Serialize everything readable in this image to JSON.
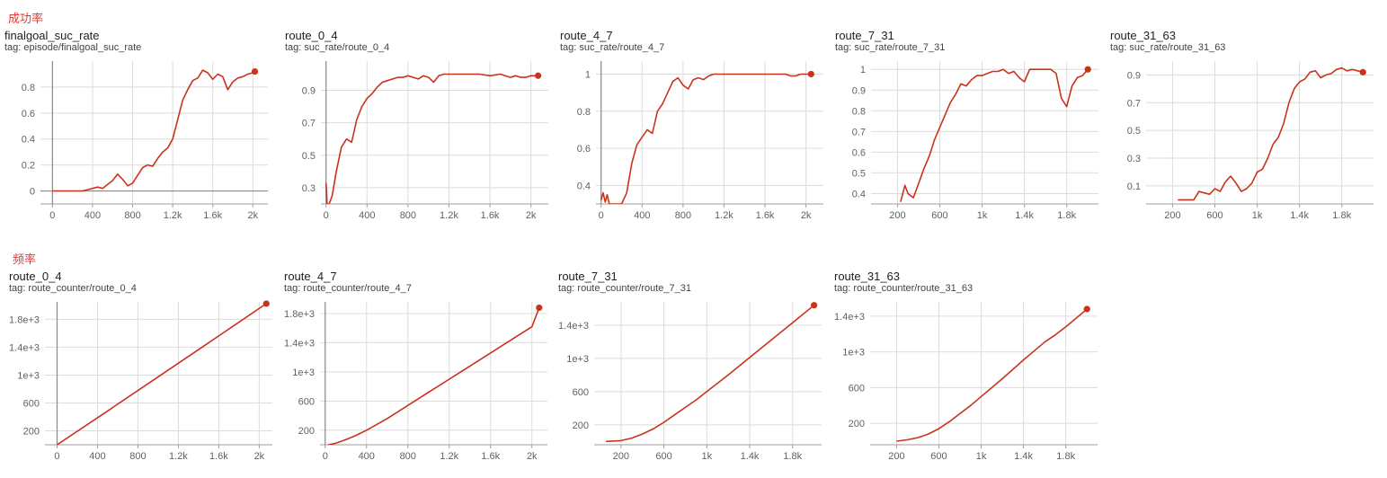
{
  "sections": [
    {
      "label": "成功率"
    },
    {
      "label": "频率"
    }
  ],
  "chart_data": [
    {
      "type": "line",
      "title": "finalgoal_suc_rate",
      "tag": "tag: episode/finalgoal_suc_rate",
      "series_color": "#c9331b",
      "xlim": [
        -120,
        2150
      ],
      "ylim": [
        -0.1,
        1.0
      ],
      "xticks": [
        {
          "v": 0,
          "label": "0"
        },
        {
          "v": 400,
          "label": "400"
        },
        {
          "v": 800,
          "label": "800"
        },
        {
          "v": 1200,
          "label": "1.2k"
        },
        {
          "v": 1600,
          "label": "1.6k"
        },
        {
          "v": 2000,
          "label": "2k"
        }
      ],
      "yticks": [
        {
          "v": 0,
          "label": "0"
        },
        {
          "v": 0.2,
          "label": "0.2"
        },
        {
          "v": 0.4,
          "label": "0.4"
        },
        {
          "v": 0.6,
          "label": "0.6"
        },
        {
          "v": 0.8,
          "label": "0.8"
        }
      ],
      "zero_axis": true,
      "x": [
        0,
        150,
        300,
        350,
        400,
        450,
        500,
        550,
        600,
        650,
        700,
        750,
        800,
        850,
        900,
        950,
        1000,
        1050,
        1100,
        1150,
        1200,
        1250,
        1300,
        1350,
        1400,
        1450,
        1500,
        1550,
        1600,
        1650,
        1700,
        1750,
        1800,
        1850,
        1900,
        1950,
        2000,
        2020
      ],
      "y": [
        0,
        0,
        0,
        0.01,
        0.02,
        0.03,
        0.02,
        0.05,
        0.08,
        0.13,
        0.09,
        0.04,
        0.06,
        0.12,
        0.18,
        0.2,
        0.19,
        0.25,
        0.3,
        0.33,
        0.4,
        0.55,
        0.7,
        0.78,
        0.85,
        0.87,
        0.93,
        0.91,
        0.86,
        0.9,
        0.88,
        0.78,
        0.84,
        0.87,
        0.88,
        0.9,
        0.91,
        0.92
      ]
    },
    {
      "type": "line",
      "title": "route_0_4",
      "tag": "tag: suc_rate/route_0_4",
      "series_color": "#c9331b",
      "xlim": [
        -50,
        2170
      ],
      "ylim": [
        0.2,
        1.08
      ],
      "xticks": [
        {
          "v": 0,
          "label": "0"
        },
        {
          "v": 400,
          "label": "400"
        },
        {
          "v": 800,
          "label": "800"
        },
        {
          "v": 1200,
          "label": "1.2k"
        },
        {
          "v": 1600,
          "label": "1.6k"
        },
        {
          "v": 2000,
          "label": "2k"
        }
      ],
      "yticks": [
        {
          "v": 0.3,
          "label": "0.3"
        },
        {
          "v": 0.5,
          "label": "0.5"
        },
        {
          "v": 0.7,
          "label": "0.7"
        },
        {
          "v": 0.9,
          "label": "0.9"
        }
      ],
      "zero_axis": true,
      "x": [
        0,
        5,
        10,
        30,
        60,
        100,
        150,
        200,
        250,
        300,
        350,
        400,
        450,
        500,
        550,
        600,
        650,
        700,
        750,
        800,
        850,
        900,
        950,
        1000,
        1050,
        1100,
        1150,
        1200,
        1250,
        1300,
        1400,
        1500,
        1600,
        1700,
        1800,
        1850,
        1900,
        1950,
        2000,
        2070
      ],
      "y": [
        0.33,
        0.28,
        0.2,
        0.2,
        0.25,
        0.4,
        0.55,
        0.6,
        0.58,
        0.72,
        0.8,
        0.85,
        0.88,
        0.92,
        0.95,
        0.96,
        0.97,
        0.98,
        0.98,
        0.99,
        0.98,
        0.97,
        0.99,
        0.98,
        0.95,
        0.99,
        1.0,
        1.0,
        1.0,
        1.0,
        1.0,
        1.0,
        0.99,
        1.0,
        0.98,
        0.99,
        0.98,
        0.98,
        0.99,
        0.99
      ]
    },
    {
      "type": "line",
      "title": "route_4_7",
      "tag": "tag: suc_rate/route_4_7",
      "series_color": "#c9331b",
      "xlim": [
        -50,
        2170
      ],
      "ylim": [
        0.3,
        1.07
      ],
      "xticks": [
        {
          "v": 0,
          "label": "0"
        },
        {
          "v": 400,
          "label": "400"
        },
        {
          "v": 800,
          "label": "800"
        },
        {
          "v": 1200,
          "label": "1.2k"
        },
        {
          "v": 1600,
          "label": "1.6k"
        },
        {
          "v": 2000,
          "label": "2k"
        }
      ],
      "yticks": [
        {
          "v": 0.4,
          "label": "0.4"
        },
        {
          "v": 0.6,
          "label": "0.6"
        },
        {
          "v": 0.8,
          "label": "0.8"
        },
        {
          "v": 1,
          "label": "1"
        }
      ],
      "zero_axis": true,
      "x": [
        0,
        20,
        40,
        60,
        80,
        150,
        200,
        250,
        300,
        350,
        400,
        450,
        500,
        550,
        600,
        650,
        700,
        750,
        800,
        850,
        900,
        950,
        1000,
        1050,
        1100,
        1200,
        1300,
        1400,
        1500,
        1600,
        1700,
        1800,
        1850,
        1900,
        1950,
        2000,
        2050
      ],
      "y": [
        0.32,
        0.36,
        0.31,
        0.35,
        0.3,
        0.3,
        0.3,
        0.36,
        0.52,
        0.62,
        0.66,
        0.7,
        0.68,
        0.8,
        0.84,
        0.9,
        0.96,
        0.98,
        0.94,
        0.92,
        0.97,
        0.98,
        0.97,
        0.99,
        1.0,
        1.0,
        1.0,
        1.0,
        1.0,
        1.0,
        1.0,
        1.0,
        0.99,
        0.99,
        1.0,
        1.0,
        1.0
      ]
    },
    {
      "type": "line",
      "title": "route_7_31",
      "tag": "tag: suc_rate/route_7_31",
      "series_color": "#c9331b",
      "xlim": [
        -50,
        2100
      ],
      "ylim": [
        0.35,
        1.04
      ],
      "xticks": [
        {
          "v": 200,
          "label": "200"
        },
        {
          "v": 600,
          "label": "600"
        },
        {
          "v": 1000,
          "label": "1k"
        },
        {
          "v": 1400,
          "label": "1.4k"
        },
        {
          "v": 1800,
          "label": "1.8k"
        }
      ],
      "yticks": [
        {
          "v": 0.4,
          "label": "0.4"
        },
        {
          "v": 0.5,
          "label": "0.5"
        },
        {
          "v": 0.6,
          "label": "0.6"
        },
        {
          "v": 0.7,
          "label": "0.7"
        },
        {
          "v": 0.8,
          "label": "0.8"
        },
        {
          "v": 0.9,
          "label": "0.9"
        },
        {
          "v": 1,
          "label": "1"
        }
      ],
      "zero_axis": false,
      "x": [
        230,
        270,
        300,
        350,
        400,
        450,
        500,
        550,
        600,
        650,
        700,
        750,
        800,
        850,
        900,
        950,
        1000,
        1050,
        1100,
        1150,
        1200,
        1250,
        1300,
        1350,
        1400,
        1450,
        1500,
        1550,
        1600,
        1650,
        1700,
        1750,
        1800,
        1850,
        1900,
        1950,
        2000
      ],
      "y": [
        0.36,
        0.44,
        0.4,
        0.38,
        0.45,
        0.52,
        0.58,
        0.66,
        0.72,
        0.78,
        0.84,
        0.88,
        0.93,
        0.92,
        0.95,
        0.97,
        0.97,
        0.98,
        0.99,
        0.99,
        1.0,
        0.98,
        0.99,
        0.96,
        0.94,
        1.0,
        1.0,
        1.0,
        1.0,
        1.0,
        0.98,
        0.86,
        0.82,
        0.92,
        0.96,
        0.97,
        1.0
      ]
    },
    {
      "type": "line",
      "title": "route_31_63",
      "tag": "tag: suc_rate/route_31_63",
      "series_color": "#c9331b",
      "xlim": [
        -50,
        2100
      ],
      "ylim": [
        -0.03,
        1.0
      ],
      "xticks": [
        {
          "v": 200,
          "label": "200"
        },
        {
          "v": 600,
          "label": "600"
        },
        {
          "v": 1000,
          "label": "1k"
        },
        {
          "v": 1400,
          "label": "1.4k"
        },
        {
          "v": 1800,
          "label": "1.8k"
        }
      ],
      "yticks": [
        {
          "v": 0.1,
          "label": "0.1"
        },
        {
          "v": 0.3,
          "label": "0.3"
        },
        {
          "v": 0.5,
          "label": "0.5"
        },
        {
          "v": 0.7,
          "label": "0.7"
        },
        {
          "v": 0.9,
          "label": "0.9"
        }
      ],
      "zero_axis": false,
      "x": [
        250,
        300,
        350,
        400,
        450,
        500,
        550,
        600,
        650,
        700,
        750,
        800,
        850,
        900,
        950,
        1000,
        1050,
        1100,
        1150,
        1200,
        1250,
        1300,
        1350,
        1400,
        1450,
        1500,
        1550,
        1600,
        1650,
        1700,
        1750,
        1800,
        1850,
        1900,
        1950,
        2000
      ],
      "y": [
        0.0,
        0.0,
        0.0,
        0.0,
        0.06,
        0.05,
        0.04,
        0.08,
        0.06,
        0.13,
        0.17,
        0.12,
        0.06,
        0.08,
        0.12,
        0.2,
        0.22,
        0.3,
        0.4,
        0.45,
        0.55,
        0.7,
        0.8,
        0.85,
        0.87,
        0.92,
        0.93,
        0.88,
        0.9,
        0.91,
        0.94,
        0.95,
        0.93,
        0.94,
        0.93,
        0.92
      ]
    },
    {
      "type": "line",
      "title": "route_0_4",
      "tag": "tag: route_counter/route_0_4",
      "series_color": "#c9331b",
      "xlim": [
        -120,
        2130
      ],
      "ylim": [
        0,
        2050
      ],
      "xticks": [
        {
          "v": 0,
          "label": "0"
        },
        {
          "v": 400,
          "label": "400"
        },
        {
          "v": 800,
          "label": "800"
        },
        {
          "v": 1200,
          "label": "1.2k"
        },
        {
          "v": 1600,
          "label": "1.6k"
        },
        {
          "v": 2000,
          "label": "2k"
        }
      ],
      "yticks": [
        {
          "v": 200,
          "label": "200"
        },
        {
          "v": 600,
          "label": "600"
        },
        {
          "v": 1000,
          "label": "1e+3"
        },
        {
          "v": 1400,
          "label": "1.4e+3"
        },
        {
          "v": 1800,
          "label": "1.8e+3"
        }
      ],
      "zero_axis": true,
      "x": [
        0,
        500,
        1000,
        1500,
        2070
      ],
      "y": [
        0,
        485,
        975,
        1465,
        2025
      ]
    },
    {
      "type": "line",
      "title": "route_4_7",
      "tag": "tag: route_counter/route_4_7",
      "series_color": "#c9331b",
      "xlim": [
        -50,
        2150
      ],
      "ylim": [
        0,
        1960
      ],
      "xticks": [
        {
          "v": 0,
          "label": "0"
        },
        {
          "v": 400,
          "label": "400"
        },
        {
          "v": 800,
          "label": "800"
        },
        {
          "v": 1200,
          "label": "1.2k"
        },
        {
          "v": 1600,
          "label": "1.6k"
        },
        {
          "v": 2000,
          "label": "2k"
        }
      ],
      "yticks": [
        {
          "v": 200,
          "label": "200"
        },
        {
          "v": 600,
          "label": "600"
        },
        {
          "v": 1000,
          "label": "1e+3"
        },
        {
          "v": 1400,
          "label": "1.4e+3"
        },
        {
          "v": 1800,
          "label": "1.8e+3"
        }
      ],
      "zero_axis": true,
      "x": [
        30,
        100,
        200,
        300,
        400,
        500,
        600,
        800,
        1000,
        1200,
        1400,
        1600,
        1800,
        2000,
        2070
      ],
      "y": [
        0,
        20,
        70,
        130,
        200,
        280,
        360,
        540,
        720,
        900,
        1080,
        1260,
        1440,
        1620,
        1880
      ]
    },
    {
      "type": "line",
      "title": "route_7_31",
      "tag": "tag: route_counter/route_7_31",
      "series_color": "#c9331b",
      "xlim": [
        -50,
        2070
      ],
      "ylim": [
        -40,
        1680
      ],
      "xticks": [
        {
          "v": 200,
          "label": "200"
        },
        {
          "v": 600,
          "label": "600"
        },
        {
          "v": 1000,
          "label": "1k"
        },
        {
          "v": 1400,
          "label": "1.4k"
        },
        {
          "v": 1800,
          "label": "1.8k"
        }
      ],
      "yticks": [
        {
          "v": 200,
          "label": "200"
        },
        {
          "v": 600,
          "label": "600"
        },
        {
          "v": 1000,
          "label": "1e+3"
        },
        {
          "v": 1400,
          "label": "1.4e+3"
        }
      ],
      "zero_axis": false,
      "x": [
        60,
        200,
        300,
        400,
        500,
        600,
        700,
        800,
        900,
        1000,
        1200,
        1400,
        1600,
        1800,
        2000
      ],
      "y": [
        0,
        10,
        40,
        90,
        150,
        230,
        320,
        410,
        500,
        600,
        800,
        1010,
        1220,
        1430,
        1640
      ]
    },
    {
      "type": "line",
      "title": "route_31_63",
      "tag": "tag: route_counter/route_31_63",
      "series_color": "#c9331b",
      "xlim": [
        -50,
        2100
      ],
      "ylim": [
        -40,
        1560
      ],
      "xticks": [
        {
          "v": 200,
          "label": "200"
        },
        {
          "v": 600,
          "label": "600"
        },
        {
          "v": 1000,
          "label": "1k"
        },
        {
          "v": 1400,
          "label": "1.4k"
        },
        {
          "v": 1800,
          "label": "1.8k"
        }
      ],
      "yticks": [
        {
          "v": 200,
          "label": "200"
        },
        {
          "v": 600,
          "label": "600"
        },
        {
          "v": 1000,
          "label": "1e+3"
        },
        {
          "v": 1400,
          "label": "1.4e+3"
        }
      ],
      "zero_axis": false,
      "x": [
        200,
        300,
        400,
        500,
        600,
        700,
        800,
        900,
        1000,
        1200,
        1400,
        1600,
        1700,
        1800,
        1900,
        2000
      ],
      "y": [
        0,
        15,
        40,
        80,
        140,
        220,
        310,
        400,
        500,
        700,
        910,
        1110,
        1190,
        1280,
        1380,
        1480
      ]
    }
  ]
}
